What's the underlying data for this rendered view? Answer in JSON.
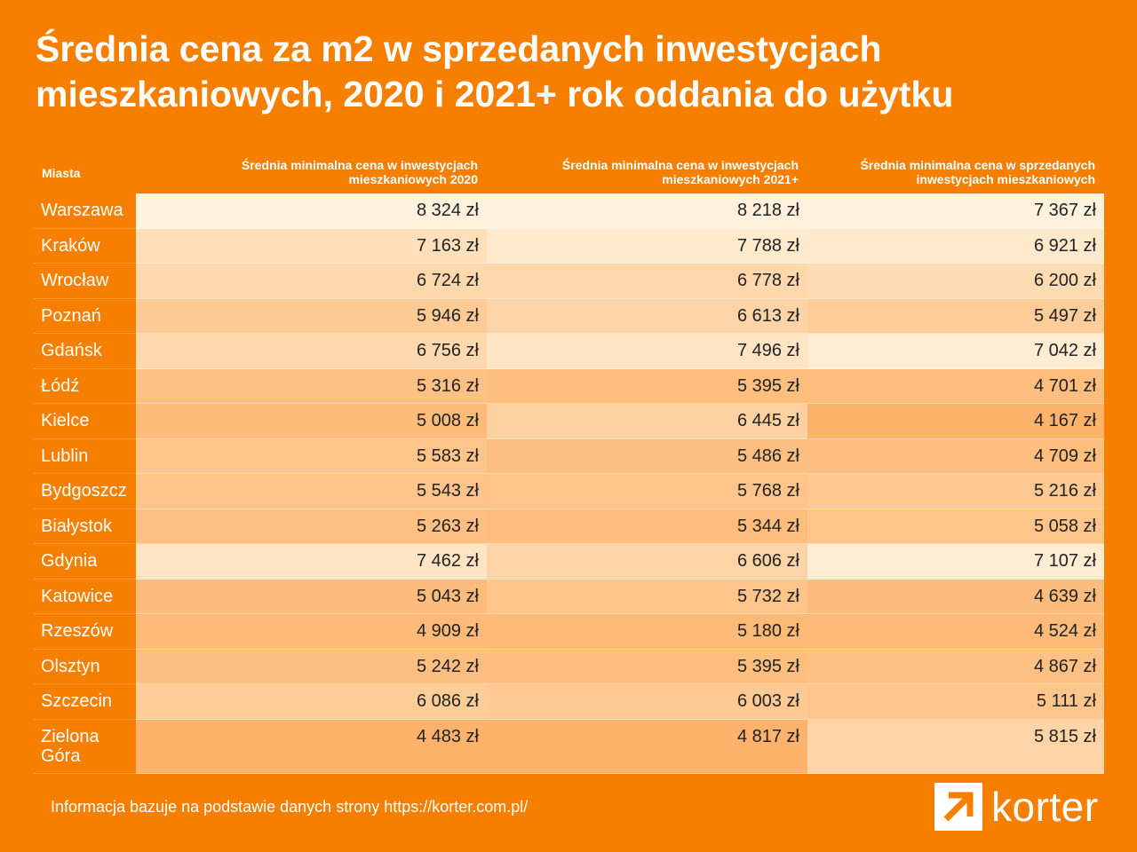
{
  "title": {
    "line1": "Średnia cena za m2 w sprzedanych inwestycjach",
    "line2": "mieszkaniowych, 2020 i 2021+ rok oddania do użytku"
  },
  "chart_data": {
    "type": "table",
    "title": "Średnia cena za m2 w sprzedanych inwestycjach mieszkaniowych, 2020 i 2021+ rok oddania do użytku",
    "columns": [
      "Miasta",
      "Średnia minimalna cena w inwestycjach mieszkaniowych 2020",
      "Średnia minimalna cena w inwestycjach mieszkaniowych 2021+",
      "Średnia minimalna cena w sprzedanych inwestycjach mieszkaniowych"
    ],
    "rows": [
      {
        "city": "Warszawa",
        "values": [
          "8 324 zł",
          "8 218 zł",
          "7 367 zł"
        ]
      },
      {
        "city": "Kraków",
        "values": [
          "7 163 zł",
          "7 788 zł",
          "6 921 zł"
        ]
      },
      {
        "city": "Wrocław",
        "values": [
          "6 724 zł",
          "6 778 zł",
          "6 200 zł"
        ]
      },
      {
        "city": "Poznań",
        "values": [
          "5 946 zł",
          "6 613 zł",
          "5 497 zł"
        ]
      },
      {
        "city": "Gdańsk",
        "values": [
          "6 756 zł",
          "7 496 zł",
          "7 042 zł"
        ]
      },
      {
        "city": "Łódź",
        "values": [
          "5 316 zł",
          "5 395 zł",
          "4 701 zł"
        ]
      },
      {
        "city": "Kielce",
        "values": [
          "5 008 zł",
          "6 445 zł",
          "4 167 zł"
        ]
      },
      {
        "city": "Lublin",
        "values": [
          "5 583 zł",
          "5 486 zł",
          "4 709 zł"
        ]
      },
      {
        "city": "Bydgoszcz",
        "values": [
          "5 543 zł",
          "5 768 zł",
          "5 216 zł"
        ]
      },
      {
        "city": "Białystok",
        "values": [
          "5 263 zł",
          "5 344 zł",
          "5 058 zł"
        ]
      },
      {
        "city": "Gdynia",
        "values": [
          "7 462 zł",
          "6 606 zł",
          "7 107 zł"
        ]
      },
      {
        "city": "Katowice",
        "values": [
          "5 043 zł",
          "5 732 zł",
          "4 639 zł"
        ]
      },
      {
        "city": "Rzeszów",
        "values": [
          "4 909 zł",
          "5 180 zł",
          "4 524 zł"
        ]
      },
      {
        "city": "Olsztyn",
        "values": [
          "5 242 zł",
          "5 395 zł",
          "4 867 zł"
        ]
      },
      {
        "city": "Szczecin",
        "values": [
          "6 086 zł",
          "6 003 zł",
          "5 111 zł"
        ]
      },
      {
        "city": "Zielona Góra",
        "values": [
          "4 483 zł",
          "4 817 zł",
          "5 815 zł"
        ]
      }
    ]
  },
  "colors": {
    "background": "#f77f00",
    "cell_light": "#fff2dc",
    "cell_dark": "#fdb36b",
    "text_dark": "#222222",
    "text_light": "#ffffff"
  },
  "footer": {
    "note": "Informacja bazuje na podstawie danych strony https://korter.com.pl/"
  },
  "logo": {
    "icon": "arrow-up-right-icon",
    "text": "korter"
  }
}
